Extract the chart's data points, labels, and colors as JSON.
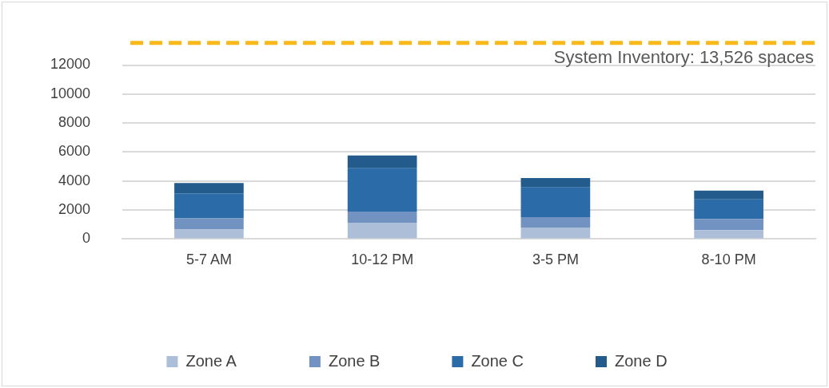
{
  "chart_data": {
    "type": "bar",
    "stacked": true,
    "categories": [
      "5-7 AM",
      "10-12 PM",
      "3-5 PM",
      "8-10 PM"
    ],
    "series": [
      {
        "name": "Zone A",
        "color": "#adbed8",
        "values": [
          650,
          1130,
          790,
          610
        ]
      },
      {
        "name": "Zone B",
        "color": "#7293c1",
        "values": [
          780,
          770,
          720,
          770
        ]
      },
      {
        "name": "Zone C",
        "color": "#2b6ca8",
        "values": [
          1720,
          2980,
          2050,
          1350
        ]
      },
      {
        "name": "Zone D",
        "color": "#225b8c",
        "values": [
          720,
          880,
          650,
          610
        ]
      }
    ],
    "ylim": [
      0,
      13526
    ],
    "yticks": [
      0,
      2000,
      4000,
      6000,
      8000,
      10000,
      12000
    ],
    "grid": "y",
    "legend": "bottom",
    "ref_lines": [
      {
        "axis": "y",
        "value": 13526,
        "label": "System Inventory: 13,526 spaces",
        "color": "#f8b919",
        "line_style": "dashed"
      }
    ]
  }
}
